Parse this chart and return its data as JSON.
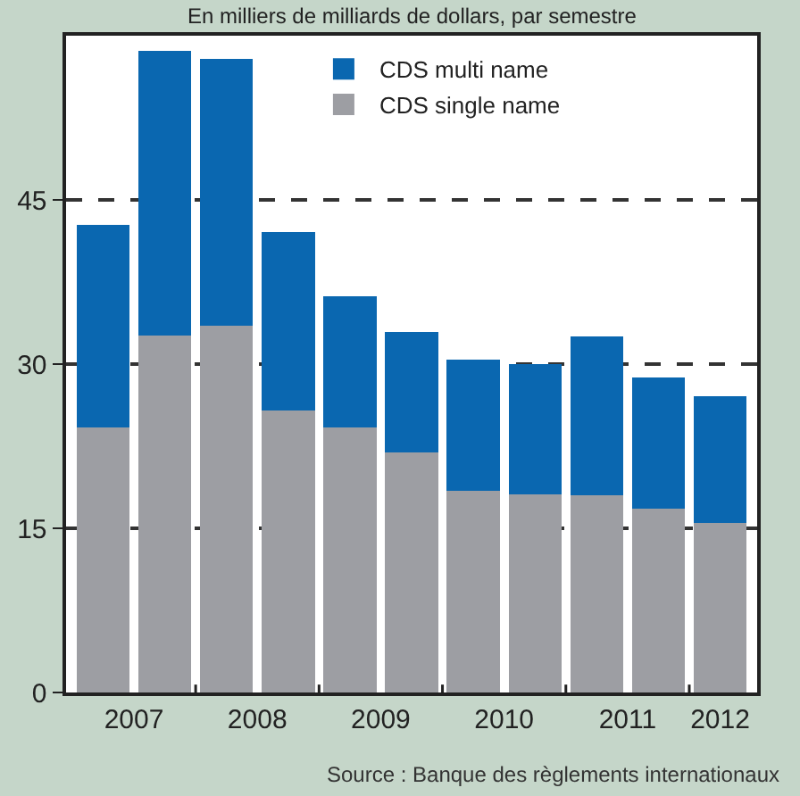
{
  "chart_data": {
    "type": "bar",
    "title": "En milliers de milliards de dollars, par semestre",
    "stacked": true,
    "categories": [
      "2007",
      null,
      "2008",
      null,
      "2009",
      null,
      "2010",
      null,
      "2011",
      null,
      "2012"
    ],
    "series": [
      {
        "name": "CDS single name",
        "color": "#9d9ea3",
        "values": [
          24.2,
          32.6,
          33.5,
          25.8,
          24.2,
          21.9,
          18.4,
          18.1,
          18.0,
          16.8,
          15.5
        ]
      },
      {
        "name": "CDS multi name",
        "color": "#0a67b0",
        "values": [
          18.5,
          26.0,
          24.4,
          16.3,
          12.0,
          11.0,
          12.0,
          11.9,
          14.5,
          12.0,
          11.6
        ]
      }
    ],
    "ylim": [
      0,
      60
    ],
    "yticks": [
      0,
      15,
      30,
      45
    ],
    "grid": "y",
    "legend": "top right",
    "annotations": [
      "Source : Banque des règlements internationaux"
    ]
  }
}
